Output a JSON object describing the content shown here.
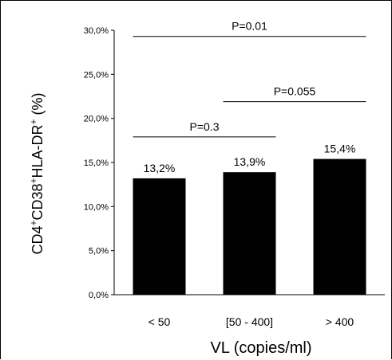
{
  "chart_data": {
    "type": "bar",
    "categories": [
      "< 50",
      "[50 - 400]",
      "> 400"
    ],
    "values": [
      13.2,
      13.9,
      15.4
    ],
    "data_labels": [
      "13,2%",
      "13,9%",
      "15,4%"
    ],
    "ylim": [
      0,
      30
    ],
    "yticks": [
      0,
      5,
      10,
      15,
      20,
      25,
      30
    ],
    "ytick_labels": [
      "0,0%",
      "5,0%",
      "10,0%",
      "15,0%",
      "20,0%",
      "25,0%",
      "30,0%"
    ],
    "xlabel": "VL (copies/ml)",
    "ylabel_parts": {
      "p1": "CD4",
      "s1": "+",
      "p2": "CD38",
      "s2": "+",
      "p3": "HLA-DR",
      "s3": "+",
      "p4": " (%)"
    },
    "bar_color": "#000000",
    "grid": false,
    "annotations": [
      {
        "text": "P=0.01",
        "from_category": 0,
        "to_category": 2,
        "level": 29.3
      },
      {
        "text": "P=0.055",
        "from_category": 1,
        "to_category": 2,
        "level": 21.9
      },
      {
        "text": "P=0.3",
        "from_category": 0,
        "to_category": 1,
        "level": 17.9
      }
    ]
  }
}
